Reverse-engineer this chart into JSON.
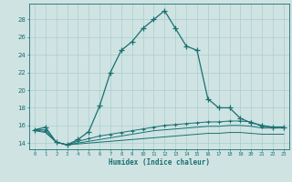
{
  "x_values": [
    0,
    1,
    2,
    3,
    4,
    5,
    6,
    7,
    8,
    9,
    10,
    11,
    12,
    13,
    14,
    15,
    16,
    17,
    18,
    19,
    20,
    21,
    22,
    23
  ],
  "line1": [
    15.5,
    15.8,
    14.1,
    13.8,
    14.4,
    15.3,
    18.2,
    22.0,
    24.5,
    25.5,
    27.0,
    28.0,
    29.0,
    27.0,
    25.0,
    24.5,
    19.0,
    18.0,
    18.0,
    16.8,
    16.3,
    16.0,
    15.8,
    15.8
  ],
  "line2": [
    15.5,
    15.5,
    14.1,
    13.8,
    14.2,
    14.5,
    14.8,
    15.0,
    15.2,
    15.4,
    15.6,
    15.8,
    16.0,
    16.1,
    16.2,
    16.3,
    16.4,
    16.4,
    16.5,
    16.5,
    16.4,
    15.9,
    15.8,
    15.8
  ],
  "line3": [
    15.5,
    15.3,
    14.1,
    13.8,
    14.0,
    14.2,
    14.4,
    14.6,
    14.8,
    15.0,
    15.2,
    15.4,
    15.5,
    15.6,
    15.7,
    15.8,
    15.9,
    15.9,
    16.0,
    16.0,
    15.9,
    15.7,
    15.7,
    15.7
  ],
  "line4": [
    15.4,
    15.2,
    14.1,
    13.8,
    13.9,
    14.0,
    14.1,
    14.2,
    14.3,
    14.4,
    14.5,
    14.6,
    14.7,
    14.8,
    14.9,
    15.0,
    15.1,
    15.1,
    15.2,
    15.2,
    15.1,
    15.0,
    15.0,
    15.0
  ],
  "bg_color": "#cfe3e3",
  "grid_color": "#aacece",
  "line_color": "#1a7070",
  "xlabel": "Humidex (Indice chaleur)",
  "ylabel_ticks": [
    14,
    16,
    18,
    20,
    22,
    24,
    26,
    28
  ],
  "xlim": [
    -0.5,
    23.5
  ],
  "ylim": [
    13.3,
    29.8
  ],
  "marker": "+",
  "marker_size": 4,
  "lw_main": 0.9,
  "lw_sec": 0.7
}
